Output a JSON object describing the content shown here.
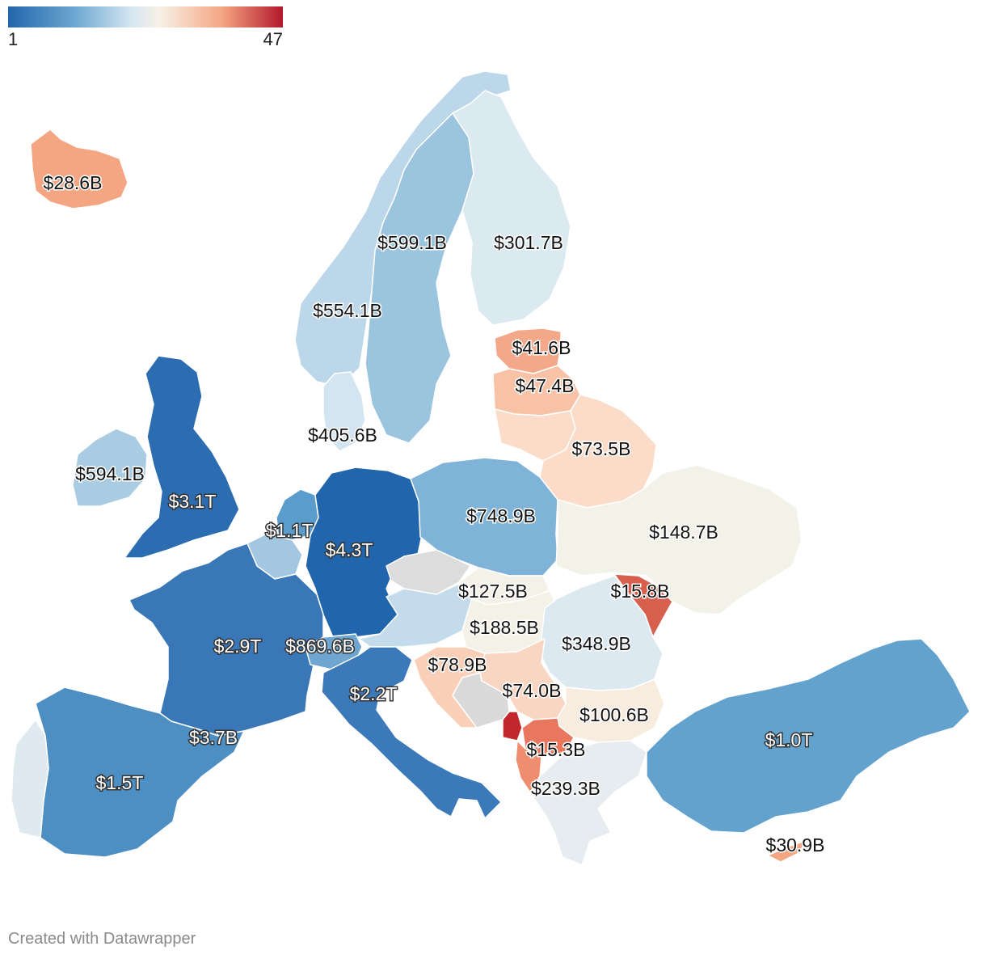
{
  "legend": {
    "min_label": "1",
    "max_label": "47",
    "colors": [
      "#2166ac",
      "#6fa9d2",
      "#d6e6f1",
      "#f7f1e6",
      "#f4a582",
      "#b2182b"
    ]
  },
  "credit": "Created with Datawrapper",
  "regions": [
    {
      "id": "iceland",
      "label": "$28.6B",
      "fill": "#f4a582",
      "style": "dark"
    },
    {
      "id": "norway",
      "label": "$554.1B",
      "fill": "#bcd7ea",
      "style": "dark"
    },
    {
      "id": "sweden",
      "label": "$599.1B",
      "fill": "#9bc4df",
      "style": "dark"
    },
    {
      "id": "finland",
      "label": "$301.7B",
      "fill": "#dbe9f1",
      "style": "dark"
    },
    {
      "id": "estonia",
      "label": "$41.6B",
      "fill": "#f4a88a",
      "style": "dark"
    },
    {
      "id": "latvia",
      "label": "$47.4B",
      "fill": "#f7c2a6",
      "style": "dark"
    },
    {
      "id": "lithuania",
      "label": "$73.5B",
      "fill": "#fbdcc8",
      "style": "dark"
    },
    {
      "id": "belarus",
      "label": "$73.5B",
      "fill": "#fbdcc8",
      "style": "none"
    },
    {
      "id": "denmark",
      "label": "$405.6B",
      "fill": "#d3e5f0",
      "style": "dark"
    },
    {
      "id": "ireland",
      "label": "$594.1B",
      "fill": "#a9cce3",
      "style": "dark"
    },
    {
      "id": "uk",
      "label": "$3.1T",
      "fill": "#2c6db2",
      "style": "light"
    },
    {
      "id": "netherlands",
      "label": "$1.1T",
      "fill": "#5a9ccb",
      "style": "light"
    },
    {
      "id": "belgium",
      "label": "",
      "fill": "#a3c7e0",
      "style": "none"
    },
    {
      "id": "germany",
      "label": "$4.3T",
      "fill": "#2166ac",
      "style": "light"
    },
    {
      "id": "poland",
      "label": "$748.9B",
      "fill": "#7fb3d7",
      "style": "dark"
    },
    {
      "id": "ukraine",
      "label": "$148.7B",
      "fill": "#f3f2e8",
      "style": "dark"
    },
    {
      "id": "france",
      "label": "$2.9T",
      "fill": "#3a77b7",
      "style": "light"
    },
    {
      "id": "switzerland",
      "label": "$869.6B",
      "fill": "#6ea6d0",
      "style": "light"
    },
    {
      "id": "czechia",
      "label": "$127.5B",
      "fill": "#dcdcdc",
      "style": "dark"
    },
    {
      "id": "austria",
      "label": "",
      "fill": "#c3dbeb",
      "style": "none"
    },
    {
      "id": "hungary",
      "label": "$188.5B",
      "fill": "#f4f1e6",
      "style": "dark"
    },
    {
      "id": "slovakia",
      "label": "",
      "fill": "#f4f1e6",
      "style": "none"
    },
    {
      "id": "moldova",
      "label": "$15.8B",
      "fill": "#d6604d",
      "style": "dark"
    },
    {
      "id": "romania",
      "label": "$348.9B",
      "fill": "#dde9f1",
      "style": "dark"
    },
    {
      "id": "croatia",
      "label": "$78.9B",
      "fill": "#f9cfb8",
      "style": "dark"
    },
    {
      "id": "italy",
      "label": "$2.2T",
      "fill": "#3b79b8",
      "style": "light"
    },
    {
      "id": "monaco",
      "label": "$3.7B",
      "fill": "#3b79b8",
      "style": "light"
    },
    {
      "id": "serbia",
      "label": "$74.0B",
      "fill": "#f9d6c2",
      "style": "dark"
    },
    {
      "id": "bosnia",
      "label": "",
      "fill": "#d9d9d9",
      "style": "none"
    },
    {
      "id": "bulgaria",
      "label": "$100.6B",
      "fill": "#f8ecdf",
      "style": "dark"
    },
    {
      "id": "montenegro",
      "label": "$15.3B",
      "fill": "#c1272d",
      "style": "dark"
    },
    {
      "id": "north-macedonia",
      "label": "",
      "fill": "#e8775e",
      "style": "none"
    },
    {
      "id": "albania",
      "label": "",
      "fill": "#ef8e6e",
      "style": "none"
    },
    {
      "id": "greece",
      "label": "$239.3B",
      "fill": "#e6ecef",
      "style": "dark"
    },
    {
      "id": "turkey",
      "label": "$1.0T",
      "fill": "#62a2cd",
      "style": "light"
    },
    {
      "id": "cyprus",
      "label": "$30.9B",
      "fill": "#f4a582",
      "style": "dark"
    },
    {
      "id": "spain",
      "label": "$1.5T",
      "fill": "#4e8fc3",
      "style": "light"
    },
    {
      "id": "portugal",
      "label": "",
      "fill": "#dfeaf0",
      "style": "none"
    }
  ]
}
